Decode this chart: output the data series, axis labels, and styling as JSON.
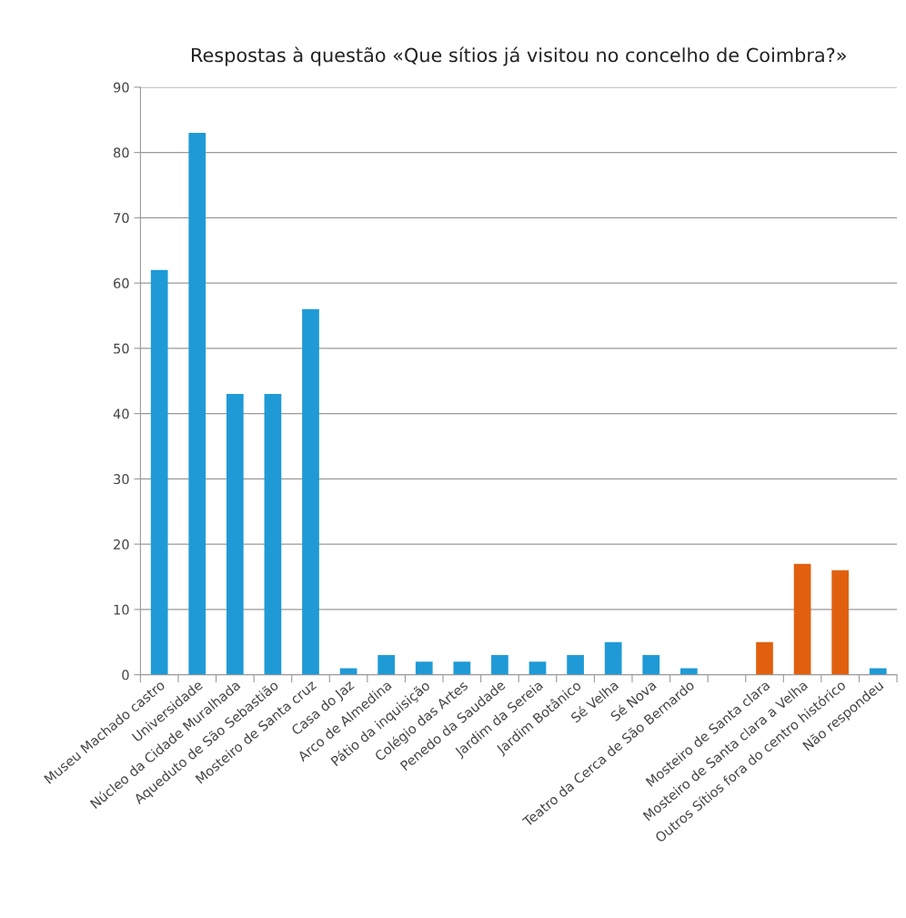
{
  "chart_data": {
    "type": "bar",
    "title": "Respostas à questão «Que sítios já visitou no concelho de Coimbra?»",
    "categories": [
      "Museu Machado castro",
      "Universidade",
      "Núcleo da Cidade Muralhada",
      "Aqueduto de São Sebastião",
      "Mosteiro de Santa cruz",
      "Casa do Jaz",
      "Arco de Almedina",
      "Pátio da inquisição",
      "Colégio das Artes",
      "Penedo da Saudade",
      "Jardim da Sereia",
      "Jardim Botânico",
      "Sé Velha",
      "Sé Nova",
      "Teatro da Cerca de São Bernardo",
      null,
      "Mosteiro de Santa clara",
      "Mosteiro de Santa clara a Velha",
      "Outros Sítios fora do centro histórico",
      "Não respondeu"
    ],
    "values": [
      62,
      83,
      43,
      43,
      56,
      1,
      3,
      2,
      2,
      3,
      2,
      3,
      5,
      3,
      1,
      0,
      5,
      17,
      16,
      1
    ],
    "colors": [
      "#1f9ad6",
      "#1f9ad6",
      "#1f9ad6",
      "#1f9ad6",
      "#1f9ad6",
      "#1f9ad6",
      "#1f9ad6",
      "#1f9ad6",
      "#1f9ad6",
      "#1f9ad6",
      "#1f9ad6",
      "#1f9ad6",
      "#1f9ad6",
      "#1f9ad6",
      "#1f9ad6",
      "#1f9ad6",
      "#e0600f",
      "#e0600f",
      "#e0600f",
      "#1f9ad6"
    ],
    "ylim": [
      0,
      90
    ],
    "yticks": [
      0,
      10,
      20,
      30,
      40,
      50,
      60,
      70,
      80,
      90
    ],
    "grid": "y"
  }
}
